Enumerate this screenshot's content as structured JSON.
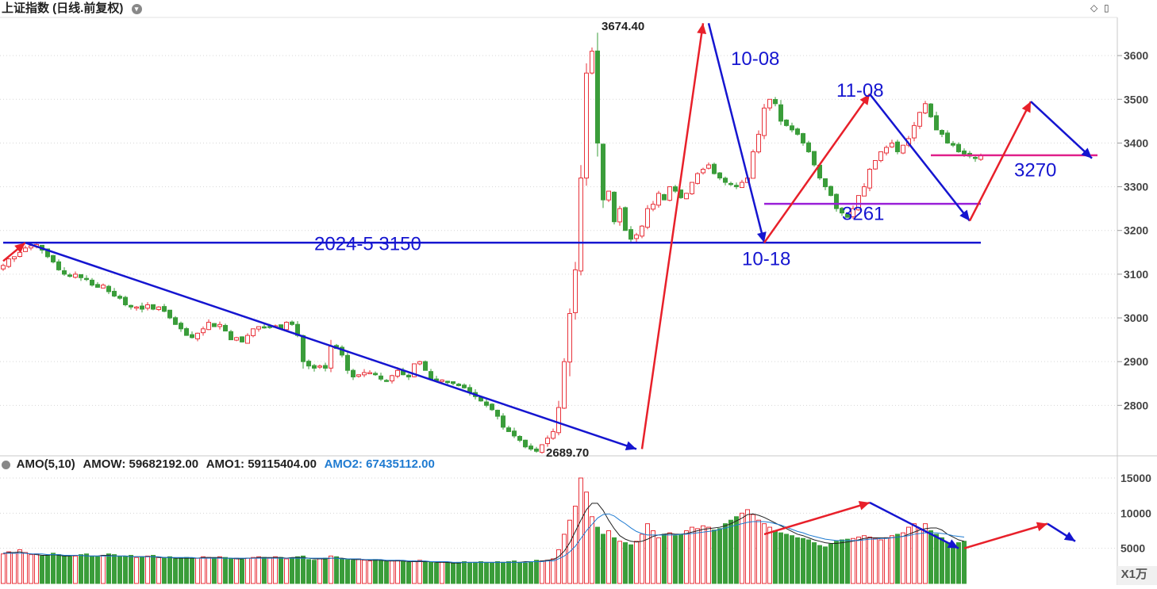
{
  "header": {
    "title": "上证指数 (日线.前复权)"
  },
  "volume_panel": {
    "indicator": "AMO(5,10)",
    "amow": "AMOW: 59682192.00",
    "amo1": "AMO1: 59115404.00",
    "amo2": "AMO2: 67435112.00",
    "unit": "X1万",
    "y_ticks": [
      "5000",
      "10000",
      "15000"
    ],
    "y_tick_values": [
      5000,
      10000,
      15000
    ],
    "ylim": [
      0,
      15000
    ]
  },
  "colors": {
    "up": "#e8323a",
    "down": "#3a9d3a",
    "trend_blue": "#1515d0",
    "trend_red": "#e8202a",
    "magenta": "#e0208a",
    "purple": "#9a20d8",
    "label_blue": "#1515d0"
  },
  "chart_data": {
    "type": "candlestick",
    "ylim": [
      2690,
      3680
    ],
    "y_ticks": [
      "2800",
      "2900",
      "3000",
      "3100",
      "3200",
      "3300",
      "3400",
      "3500",
      "3600"
    ],
    "y_tick_values": [
      2800,
      2900,
      3000,
      3100,
      3200,
      3300,
      3400,
      3500,
      3600
    ],
    "high_label": "3674.40",
    "high_value": 3674.4,
    "low_label": "2689.70",
    "low_value": 2689.7,
    "annotations": [
      {
        "text": "2024-5  3150"
      },
      {
        "text": "10-08"
      },
      {
        "text": "11-08"
      },
      {
        "text": "10-18"
      },
      {
        "text": "3261"
      },
      {
        "text": "3270"
      }
    ],
    "closes": [
      3120,
      3135,
      3140,
      3150,
      3160,
      3165,
      3168,
      3155,
      3140,
      3128,
      3110,
      3100,
      3095,
      3100,
      3092,
      3088,
      3075,
      3070,
      3075,
      3060,
      3050,
      3045,
      3030,
      3025,
      3025,
      3020,
      3030,
      3020,
      3025,
      3015,
      3000,
      2985,
      2975,
      2960,
      2955,
      2965,
      2975,
      2990,
      2980,
      2985,
      2970,
      2950,
      2955,
      2945,
      2960,
      2975,
      2980,
      2978,
      2980,
      2982,
      2975,
      2990,
      2985,
      2960,
      2900,
      2890,
      2885,
      2890,
      2885,
      2935,
      2930,
      2915,
      2880,
      2865,
      2870,
      2875,
      2875,
      2870,
      2860,
      2855,
      2868,
      2880,
      2870,
      2865,
      2895,
      2900,
      2880,
      2860,
      2855,
      2858,
      2852,
      2850,
      2845,
      2840,
      2830,
      2820,
      2810,
      2800,
      2790,
      2775,
      2750,
      2740,
      2730,
      2720,
      2705,
      2700,
      2695,
      2710,
      2725,
      2740,
      2795,
      2900,
      3010,
      3110,
      3320,
      3560,
      3610,
      3400,
      3270,
      3290,
      3220,
      3250,
      3200,
      3180,
      3190,
      3210,
      3250,
      3260,
      3285,
      3270,
      3300,
      3290,
      3275,
      3285,
      3310,
      3330,
      3340,
      3350,
      3330,
      3320,
      3310,
      3305,
      3300,
      3310,
      3320,
      3380,
      3420,
      3480,
      3500,
      3490,
      3450,
      3440,
      3430,
      3420,
      3400,
      3380,
      3350,
      3320,
      3300,
      3280,
      3250,
      3240,
      3230,
      3250,
      3280,
      3300,
      3340,
      3360,
      3380,
      3390,
      3400,
      3380,
      3395,
      3410,
      3440,
      3470,
      3490,
      3460,
      3430,
      3420,
      3400,
      3395,
      3380,
      3375,
      3370,
      3365,
      3372
    ],
    "volumes": [
      4200,
      4500,
      4300,
      4800,
      4400,
      4100,
      4200,
      3900,
      4000,
      4300,
      4100,
      4000,
      3800,
      3900,
      4100,
      4200,
      3900,
      3800,
      4000,
      4200,
      4100,
      3800,
      3900,
      4000,
      3700,
      3800,
      3900,
      4000,
      3700,
      3600,
      3800,
      3500,
      3600,
      3700,
      3500,
      3600,
      3800,
      3700,
      3600,
      3800,
      3700,
      3500,
      3600,
      3400,
      3600,
      3700,
      3800,
      3700,
      3600,
      3800,
      3700,
      3500,
      3600,
      3800,
      3900,
      3400,
      3300,
      3500,
      3600,
      3900,
      3800,
      3500,
      3400,
      3300,
      3500,
      3300,
      3200,
      3400,
      3300,
      3100,
      3200,
      3300,
      3100,
      3000,
      3200,
      3300,
      3100,
      3000,
      2900,
      3100,
      3000,
      2900,
      3000,
      3100,
      2900,
      3000,
      3100,
      3000,
      2900,
      3100,
      3000,
      3100,
      3200,
      3000,
      2900,
      3100,
      3300,
      3200,
      3300,
      3500,
      4800,
      7000,
      9000,
      11000,
      15000,
      13000,
      9500,
      8000,
      7000,
      7500,
      6500,
      6000,
      5800,
      5500,
      6000,
      7000,
      8500,
      7500,
      6500,
      7000,
      7200,
      6800,
      7000,
      7500,
      8000,
      7800,
      8200,
      8000,
      7600,
      7800,
      8500,
      9000,
      9500,
      10000,
      10500,
      9800,
      9000,
      8500,
      8000,
      7500,
      7200,
      7000,
      6800,
      6500,
      6400,
      6200,
      5800,
      5400,
      5200,
      5600,
      6000,
      6200,
      6300,
      6400,
      6600,
      6800,
      6600,
      6400,
      6200,
      6500,
      6800,
      7000,
      7200,
      8000,
      8500,
      7800,
      8500,
      7500,
      7000,
      6500,
      5800,
      5500,
      5800,
      6000
    ],
    "amo_line1": [
      4300,
      4400,
      4400,
      4500,
      4300,
      4200,
      4100,
      4000,
      4000,
      4100,
      4000,
      3900,
      3900,
      4000,
      4000,
      3900,
      3900,
      3900,
      4000,
      4000,
      3900,
      3900,
      3900,
      3800,
      3800,
      3800,
      3800,
      3800,
      3700,
      3700,
      3700,
      3600,
      3600,
      3600,
      3600,
      3600,
      3700,
      3700,
      3700,
      3700,
      3600,
      3600,
      3500,
      3500,
      3600,
      3600,
      3700,
      3700,
      3700,
      3700,
      3700,
      3600,
      3700,
      3700,
      3700,
      3600,
      3500,
      3500,
      3500,
      3600,
      3600,
      3600,
      3500,
      3400,
      3400,
      3400,
      3300,
      3300,
      3300,
      3200,
      3200,
      3200,
      3200,
      3100,
      3100,
      3100,
      3100,
      3100,
      3000,
      3000,
      3000,
      2900,
      2900,
      3000,
      3000,
      3000,
      3000,
      3000,
      3000,
      3000,
      3000,
      3000,
      3000,
      3000,
      3100,
      3100,
      3100,
      3200,
      3300,
      3400,
      3800,
      4600,
      5800,
      7400,
      9000,
      10500,
      11400,
      11400,
      10400,
      9000,
      7800,
      6800,
      6300,
      6000,
      5900,
      6000,
      6300,
      6700,
      6900,
      7000,
      7100,
      7000,
      7000,
      7100,
      7300,
      7500,
      7700,
      7800,
      7900,
      8000,
      8200,
      8500,
      8900,
      9300,
      9800,
      9900,
      9700,
      9400,
      9000,
      8600,
      8200,
      7800,
      7400,
      7000,
      6800,
      6500,
      6200,
      6000,
      5800,
      5700,
      5700,
      5800,
      5900,
      6000,
      6200,
      6400,
      6500,
      6500,
      6500,
      6500,
      6500,
      6600,
      6700,
      7000,
      7300,
      7600,
      7800,
      7900,
      7900,
      7600,
      7000,
      6600,
      6200,
      6000
    ],
    "amo_line2": [
      4300,
      4300,
      4300,
      4300,
      4300,
      4200,
      4200,
      4200,
      4100,
      4100,
      4100,
      4000,
      4000,
      4000,
      4000,
      3900,
      3900,
      3900,
      3900,
      3900,
      3900,
      3900,
      3900,
      3800,
      3800,
      3800,
      3800,
      3800,
      3800,
      3700,
      3700,
      3700,
      3700,
      3700,
      3700,
      3600,
      3600,
      3600,
      3600,
      3600,
      3600,
      3600,
      3600,
      3600,
      3600,
      3600,
      3600,
      3600,
      3600,
      3600,
      3600,
      3600,
      3600,
      3600,
      3600,
      3600,
      3600,
      3600,
      3600,
      3600,
      3600,
      3500,
      3500,
      3500,
      3500,
      3400,
      3400,
      3400,
      3400,
      3300,
      3300,
      3300,
      3300,
      3200,
      3200,
      3200,
      3200,
      3100,
      3100,
      3100,
      3100,
      3000,
      3000,
      3000,
      3000,
      3000,
      3000,
      3000,
      3000,
      3000,
      3000,
      3000,
      3000,
      3000,
      3000,
      3100,
      3100,
      3100,
      3200,
      3200,
      3500,
      3900,
      4500,
      5300,
      6400,
      7500,
      8400,
      9300,
      9800,
      9900,
      9600,
      9000,
      8500,
      7900,
      7400,
      7100,
      6900,
      6900,
      6900,
      6900,
      6900,
      6900,
      7000,
      7000,
      7100,
      7200,
      7300,
      7400,
      7500,
      7700,
      7900,
      8100,
      8300,
      8500,
      8700,
      8800,
      8800,
      8800,
      8700,
      8500,
      8300,
      8000,
      7700,
      7400,
      7200,
      6900,
      6700,
      6500,
      6300,
      6200,
      6100,
      6100,
      6100,
      6100,
      6100,
      6200,
      6300,
      6300,
      6400,
      6400,
      6500,
      6600,
      6700,
      6800,
      7000,
      7100,
      7200,
      7200,
      7200,
      7100,
      7000,
      6800,
      6700,
      6600
    ]
  }
}
